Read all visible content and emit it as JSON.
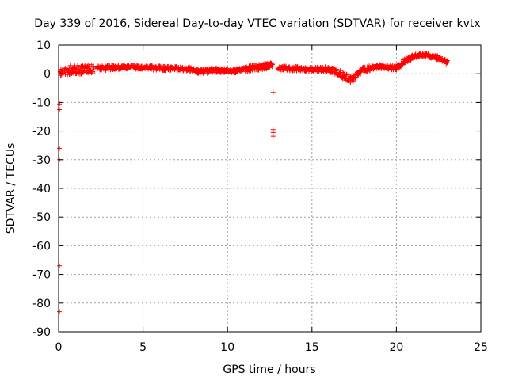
{
  "chart_data": {
    "type": "scatter",
    "title": "Day 339 of 2016, Sidereal Day-to-day VTEC variation (SDTVAR) for receiver kvtx",
    "xlabel": "GPS time / hours",
    "ylabel": "SDTVAR / TECUs",
    "xlim": [
      0,
      25
    ],
    "ylim": [
      -90,
      10
    ],
    "xticks": [
      0,
      5,
      10,
      15,
      20,
      25
    ],
    "yticks": [
      10,
      0,
      -10,
      -20,
      -30,
      -40,
      -50,
      -60,
      -70,
      -80,
      -90
    ],
    "grid": true,
    "marker": "+",
    "color": "#ff0000",
    "band_segments": [
      {
        "x": [
          0.1,
          0.5,
          0.9,
          1.3,
          1.7,
          2.1
        ],
        "center": [
          0.5,
          0.8,
          2.0,
          1.5,
          1.6,
          1.8
        ],
        "spread": [
          2.5,
          2.5,
          4.0,
          3.5,
          3.0,
          3.0
        ]
      },
      {
        "x": [
          2.3,
          3.5,
          5.0,
          6.5,
          8.0
        ],
        "center": [
          1.8,
          2.3,
          2.2,
          1.8,
          1.6
        ],
        "spread": [
          1.8,
          1.6,
          1.6,
          1.6,
          1.6
        ]
      },
      {
        "x": [
          8.1,
          9.5,
          10.5,
          11.5,
          12.7
        ],
        "center": [
          0.8,
          1.2,
          1.0,
          2.0,
          3.0
        ],
        "spread": [
          2.0,
          1.8,
          1.6,
          2.0,
          2.0
        ]
      },
      {
        "x": [
          13.0,
          14.0,
          15.0,
          16.0,
          16.5,
          17.0,
          17.3,
          17.6,
          18.0,
          19.0,
          20.0
        ],
        "center": [
          2.0,
          1.8,
          1.5,
          1.5,
          0.5,
          -1.0,
          -2.0,
          -1.0,
          1.5,
          2.5,
          2.0
        ],
        "spread": [
          1.6,
          1.6,
          1.6,
          2.0,
          2.4,
          2.4,
          2.4,
          2.2,
          1.8,
          1.6,
          1.6
        ]
      },
      {
        "x": [
          20.0,
          20.5,
          21.0,
          21.5,
          22.0,
          22.5,
          23.0
        ],
        "center": [
          2.0,
          4.5,
          6.0,
          6.5,
          6.2,
          5.5,
          4.0
        ],
        "spread": [
          1.6,
          1.8,
          1.6,
          1.6,
          1.6,
          1.6,
          1.6
        ]
      }
    ],
    "outliers": [
      {
        "x": 0.05,
        "y": -10.5
      },
      {
        "x": 0.05,
        "y": -12.5
      },
      {
        "x": 0.05,
        "y": -26.0
      },
      {
        "x": 0.05,
        "y": -30.0
      },
      {
        "x": 0.05,
        "y": -67.0
      },
      {
        "x": 0.05,
        "y": -83.0
      },
      {
        "x": 12.7,
        "y": -6.5
      },
      {
        "x": 12.7,
        "y": -19.5
      },
      {
        "x": 12.7,
        "y": -20.5
      },
      {
        "x": 12.7,
        "y": -21.8
      }
    ]
  }
}
